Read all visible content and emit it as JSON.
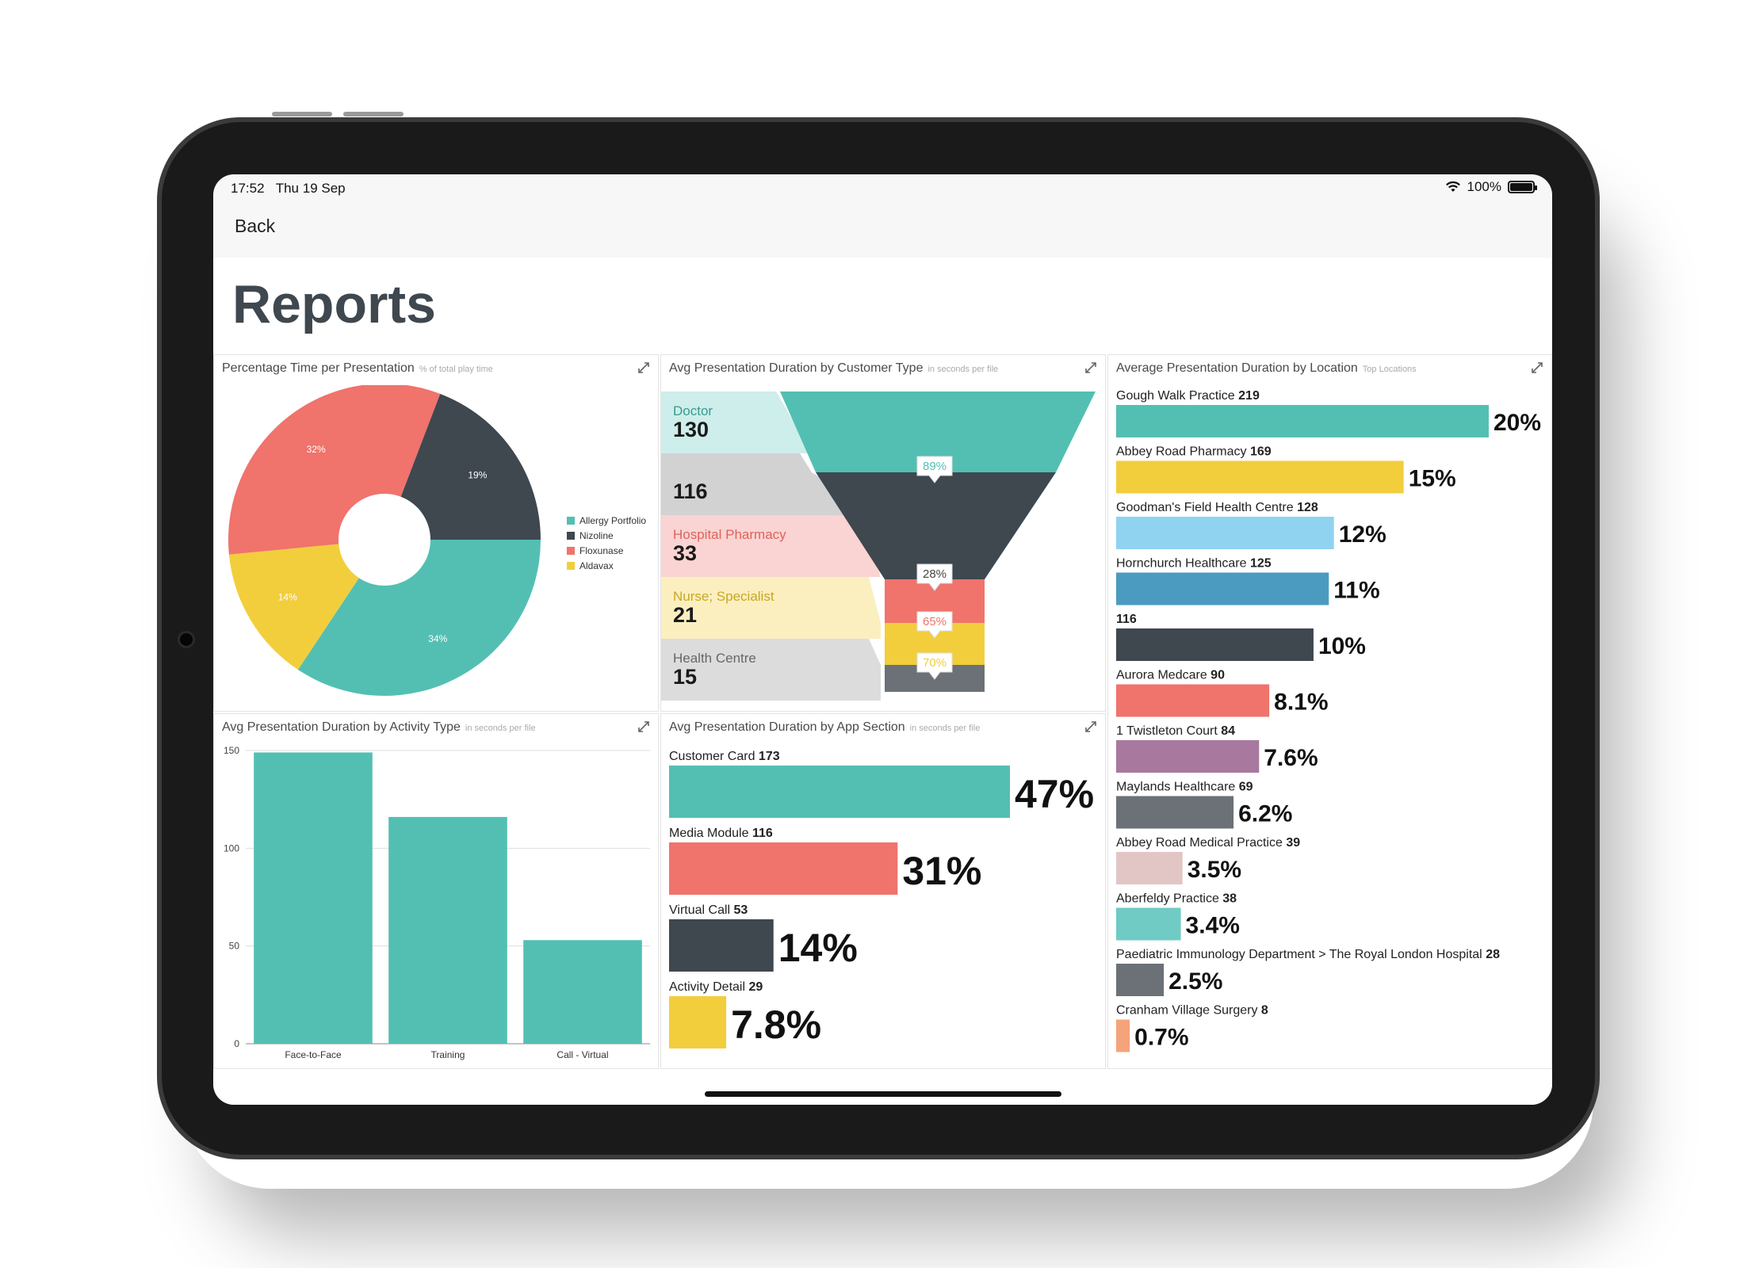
{
  "status_bar": {
    "time": "17:52",
    "date": "Thu 19 Sep",
    "battery": "100%",
    "wifi_icon": "wifi-icon",
    "battery_icon": "battery-icon"
  },
  "nav": {
    "back_label": "Back"
  },
  "page": {
    "title": "Reports"
  },
  "colors": {
    "teal": "#53BFB3",
    "dark": "#3F474F",
    "red": "#F0736C",
    "yellow": "#F2CE3D"
  },
  "panels": {
    "pie": {
      "title": "Percentage Time per Presentation",
      "subtitle": "% of total play time"
    },
    "funnel": {
      "title": "Avg Presentation Duration by Customer Type",
      "subtitle": "in seconds per file"
    },
    "location": {
      "title": "Average Presentation Duration by Location",
      "subtitle": "Top Locations"
    },
    "activity": {
      "title": "Avg Presentation Duration by Activity Type",
      "subtitle": "in seconds per file"
    },
    "app_section": {
      "title": "Avg Presentation Duration by App Section",
      "subtitle": "in seconds per file"
    }
  },
  "chart_data": [
    {
      "type": "pie",
      "title": "Percentage Time per Presentation",
      "subtitle": "% of total play time",
      "legend_position": "right",
      "slices": [
        {
          "label": "Allergy Portfolio",
          "value": 34,
          "display": "34%",
          "color": "#53BFB3"
        },
        {
          "label": "Aldavax",
          "value": 14,
          "display": "14%",
          "color": "#F2CE3D"
        },
        {
          "label": "Floxunase",
          "value": 32,
          "display": "32%",
          "color": "#F0736C"
        },
        {
          "label": "Nizoline",
          "value": 19,
          "display": "19%",
          "color": "#3F474F"
        }
      ],
      "legend": [
        {
          "label": "Allergy Portfolio",
          "color": "#53BFB3"
        },
        {
          "label": "Nizoline",
          "color": "#3F474F"
        },
        {
          "label": "Floxunase",
          "color": "#F0736C"
        },
        {
          "label": "Aldavax",
          "color": "#F2CE3D"
        }
      ]
    },
    {
      "type": "funnel",
      "title": "Avg Presentation Duration by Customer Type",
      "subtitle": "in seconds per file",
      "stages": [
        {
          "label": "Doctor",
          "value": 130,
          "color": "#53BFB3",
          "label_color": "#3a9a90",
          "bg": "#cdeeea"
        },
        {
          "label": "",
          "value": 116,
          "color": "#3F474F",
          "label_color": "#444",
          "bg": "#d2d2d2"
        },
        {
          "label": "Hospital Pharmacy",
          "value": 33,
          "color": "#F0736C",
          "label_color": "#e0625b",
          "bg": "#f9d4d2"
        },
        {
          "label": "Nurse; Specialist",
          "value": 21,
          "color": "#F2CE3D",
          "label_color": "#c9a720",
          "bg": "#fbefc0"
        },
        {
          "label": "Health Centre",
          "value": 15,
          "color": "#6b7177",
          "label_color": "#666",
          "bg": "#dcdcdc"
        }
      ],
      "conversions": [
        {
          "display": "89%",
          "color": "#53BFB3"
        },
        {
          "display": "28%",
          "color": "#444444"
        },
        {
          "display": "65%",
          "color": "#F0736C"
        },
        {
          "display": "70%",
          "color": "#F2CE3D"
        }
      ]
    },
    {
      "type": "bar",
      "orientation": "horizontal",
      "title": "Average Presentation Duration by Location",
      "subtitle": "Top Locations",
      "items": [
        {
          "label": "Gough Walk Practice",
          "value": 219,
          "pct": "20%",
          "color": "#53BFB3"
        },
        {
          "label": "Abbey Road Pharmacy",
          "value": 169,
          "pct": "15%",
          "color": "#F2CE3D"
        },
        {
          "label": "Goodman's Field Health Centre",
          "value": 128,
          "pct": "12%",
          "color": "#8FD3F0"
        },
        {
          "label": "Hornchurch Healthcare",
          "value": 125,
          "pct": "11%",
          "color": "#4A9BBF"
        },
        {
          "label": "",
          "value": 116,
          "pct": "10%",
          "color": "#3F474F"
        },
        {
          "label": "Aurora Medcare",
          "value": 90,
          "pct": "8.1%",
          "color": "#F0736C"
        },
        {
          "label": "1 Twistleton Court",
          "value": 84,
          "pct": "7.6%",
          "color": "#A8789E"
        },
        {
          "label": "Maylands Healthcare",
          "value": 69,
          "pct": "6.2%",
          "color": "#6B7177"
        },
        {
          "label": "Abbey Road Medical Practice",
          "value": 39,
          "pct": "3.5%",
          "color": "#E2C6C6"
        },
        {
          "label": "Aberfeldy Practice",
          "value": 38,
          "pct": "3.4%",
          "color": "#6FCBC4"
        },
        {
          "label": "Paediatric Immunology Department > The Royal London Hospital",
          "value": 28,
          "pct": "2.5%",
          "color": "#6B7177"
        },
        {
          "label": "Cranham Village Surgery",
          "value": 8,
          "pct": "0.7%",
          "color": "#F5A37A"
        }
      ]
    },
    {
      "type": "bar",
      "orientation": "vertical",
      "title": "Avg Presentation Duration by Activity Type",
      "subtitle": "in seconds per file",
      "categories": [
        "Face-to-Face",
        "Training",
        "Call - Virtual"
      ],
      "values": [
        149,
        116,
        53
      ],
      "ylim": [
        0,
        150
      ],
      "yticks": [
        0,
        50,
        100,
        150
      ],
      "grid": true,
      "color": "#53BFB3"
    },
    {
      "type": "bar",
      "orientation": "horizontal",
      "title": "Avg Presentation Duration by App Section",
      "subtitle": "in seconds per file",
      "items": [
        {
          "label": "Customer Card",
          "value": 173,
          "pct": "47%",
          "color": "#53BFB3"
        },
        {
          "label": "Media Module",
          "value": 116,
          "pct": "31%",
          "color": "#F0736C"
        },
        {
          "label": "Virtual Call",
          "value": 53,
          "pct": "14%",
          "color": "#3F474F"
        },
        {
          "label": "Activity Detail",
          "value": 29,
          "pct": "7.8%",
          "color": "#F2CE3D"
        }
      ]
    }
  ]
}
